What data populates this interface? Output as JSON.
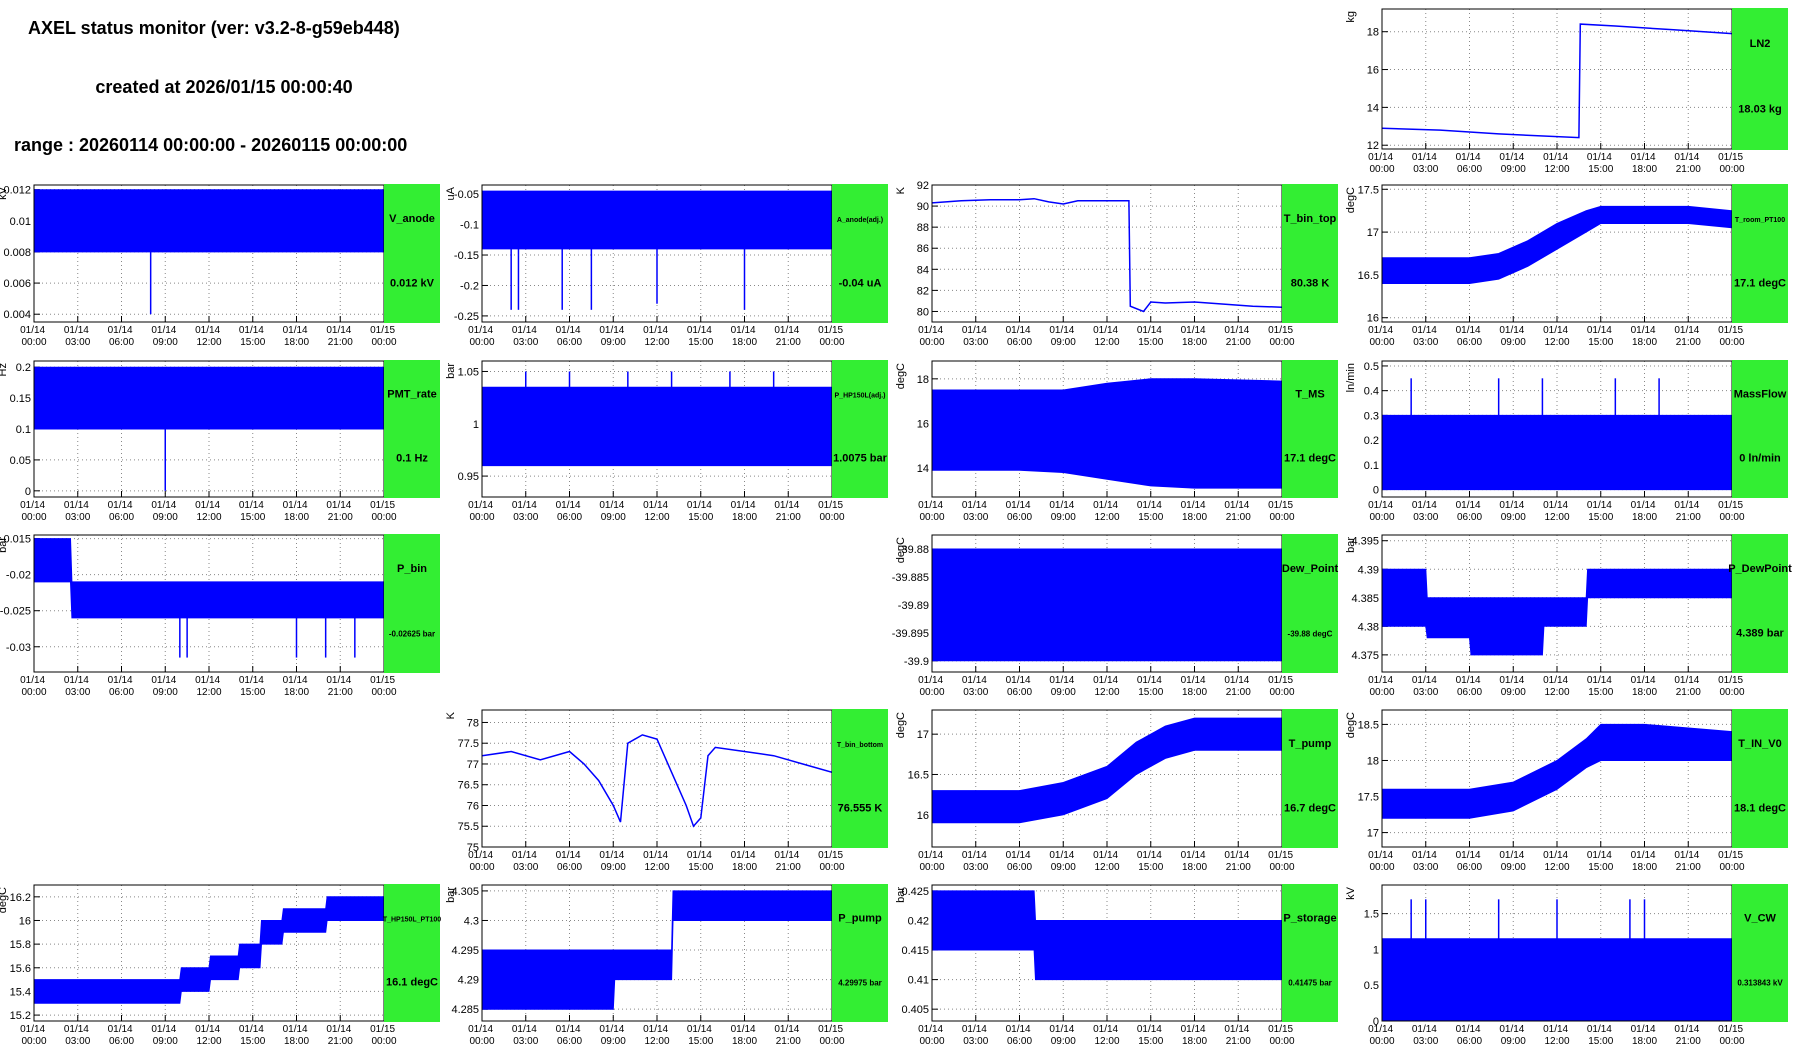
{
  "header": {
    "title": "AXEL status monitor (ver: v3.2-8-g59eb448)",
    "created": "created at 2026/01/15 00:00:40",
    "range": "range : 20260114 00:00:00 - 20260115 00:00:00"
  },
  "line_color": "#0000ff",
  "time_axis": {
    "xlim": [
      0,
      24
    ],
    "xticks": [
      {
        "value": 0,
        "label": "01/14 00:00"
      },
      {
        "value": 3,
        "label": "01/14 03:00"
      },
      {
        "value": 6,
        "label": "01/14 06:00"
      },
      {
        "value": 9,
        "label": "01/14 09:00"
      },
      {
        "value": 12,
        "label": "01/14 12:00"
      },
      {
        "value": 15,
        "label": "01/14 15:00"
      },
      {
        "value": 18,
        "label": "01/14 18:00"
      },
      {
        "value": 21,
        "label": "01/14 21:00"
      },
      {
        "value": 24,
        "label": "01/15 00:00"
      }
    ]
  },
  "chart_data": [
    {
      "type": "line",
      "name": "LN2",
      "ylabel": "kg",
      "value_label": "18.03 kg",
      "ylim": [
        11.8,
        19.2
      ],
      "yticks": [
        12,
        14,
        16,
        18
      ],
      "x": [
        0,
        4,
        8,
        13.5,
        13.6,
        16,
        20,
        24
      ],
      "values": [
        12.9,
        12.8,
        12.6,
        12.4,
        18.4,
        18.3,
        18.1,
        17.9
      ]
    },
    {
      "type": "band",
      "name": "V_anode",
      "ylabel": "kV",
      "value_label": "0.012 kV",
      "ylim": [
        0.0035,
        0.0123
      ],
      "yticks": [
        0.004,
        0.006,
        0.008,
        0.01,
        0.012
      ],
      "x": [
        0,
        24
      ],
      "low": [
        0.008,
        0.008
      ],
      "high": [
        0.012,
        0.012
      ],
      "spike_x": [
        8
      ],
      "spike_values": [
        0.004
      ]
    },
    {
      "type": "band",
      "name": "A_anode(adj.)",
      "ylabel": "uA",
      "value_label": "-0.04 uA",
      "ylim": [
        -0.26,
        -0.035
      ],
      "yticks": [
        -0.05,
        -0.1,
        -0.15,
        -0.2,
        -0.25
      ],
      "x": [
        0,
        24
      ],
      "low": [
        -0.14,
        -0.14
      ],
      "high": [
        -0.045,
        -0.045
      ],
      "spike_x": [
        2,
        2.5,
        5.5,
        7.5,
        12,
        18
      ],
      "spike_values": [
        -0.24,
        -0.24,
        -0.24,
        -0.24,
        -0.23,
        -0.24
      ]
    },
    {
      "type": "line",
      "name": "T_bin_top",
      "ylabel": "K",
      "value_label": "80.38 K",
      "ylim": [
        79,
        92
      ],
      "yticks": [
        80,
        82,
        84,
        86,
        88,
        90,
        92
      ],
      "x": [
        0,
        2,
        4,
        6,
        7,
        8,
        9,
        10,
        12,
        13.5,
        13.6,
        14.5,
        15,
        16,
        18,
        20,
        22,
        24
      ],
      "values": [
        90.3,
        90.5,
        90.6,
        90.6,
        90.7,
        90.4,
        90.2,
        90.5,
        90.5,
        90.5,
        80.5,
        80.0,
        80.9,
        80.8,
        80.9,
        80.7,
        80.5,
        80.4
      ]
    },
    {
      "type": "band",
      "name": "T_room_PT100",
      "ylabel": "degC",
      "value_label": "17.1 degC",
      "ylim": [
        15.95,
        17.55
      ],
      "yticks": [
        16,
        16.5,
        17,
        17.5
      ],
      "x": [
        0,
        6,
        8,
        10,
        12,
        14,
        15,
        18,
        21,
        24
      ],
      "low": [
        16.4,
        16.4,
        16.45,
        16.6,
        16.8,
        17.0,
        17.1,
        17.1,
        17.1,
        17.05
      ],
      "high": [
        16.7,
        16.7,
        16.75,
        16.9,
        17.1,
        17.25,
        17.3,
        17.3,
        17.3,
        17.25
      ]
    },
    {
      "type": "band",
      "name": "PMT_rate",
      "ylabel": "Hz",
      "value_label": "0.1 Hz",
      "ylim": [
        -0.01,
        0.21
      ],
      "yticks": [
        0,
        0.05,
        0.1,
        0.15,
        0.2
      ],
      "x": [
        0,
        24
      ],
      "low": [
        0.1,
        0.1
      ],
      "high": [
        0.2,
        0.2
      ],
      "spike_x": [
        9
      ],
      "spike_values": [
        0
      ]
    },
    {
      "type": "band",
      "name": "P_HP150L(adj.)",
      "ylabel": "bar",
      "value_label": "1.0075 bar",
      "ylim": [
        0.93,
        1.06
      ],
      "yticks": [
        0.95,
        1,
        1.05
      ],
      "x": [
        0,
        24
      ],
      "low": [
        0.96,
        0.96
      ],
      "high": [
        1.035,
        1.035
      ],
      "spike_x": [
        3,
        6,
        10,
        13,
        17,
        20
      ],
      "spike_values": [
        1.05,
        1.05,
        1.05,
        1.05,
        1.05,
        1.05
      ]
    },
    {
      "type": "band",
      "name": "T_MS",
      "ylabel": "degC",
      "value_label": "17.1 degC",
      "ylim": [
        12.7,
        18.8
      ],
      "yticks": [
        14,
        16,
        18
      ],
      "x": [
        0,
        6,
        9,
        12,
        15,
        18,
        24
      ],
      "low": [
        13.9,
        13.9,
        13.8,
        13.5,
        13.2,
        13.1,
        13.1
      ],
      "high": [
        17.5,
        17.5,
        17.5,
        17.8,
        18.0,
        18.0,
        17.9
      ]
    },
    {
      "type": "band",
      "name": "MassFlow",
      "ylabel": "ln/min",
      "value_label": "0 ln/min",
      "ylim": [
        -0.03,
        0.52
      ],
      "yticks": [
        0,
        0.1,
        0.2,
        0.3,
        0.4,
        0.5
      ],
      "x": [
        0,
        24
      ],
      "low": [
        0,
        0
      ],
      "high": [
        0.3,
        0.3
      ],
      "spike_x": [
        2,
        8,
        11,
        16,
        19
      ],
      "spike_values": [
        0.45,
        0.45,
        0.45,
        0.45,
        0.45
      ]
    },
    {
      "type": "band",
      "name": "P_bin",
      "ylabel": "bar",
      "value_label": "-0.02625 bar",
      "ylim": [
        -0.0335,
        -0.0145
      ],
      "yticks": [
        -0.015,
        -0.02,
        -0.025,
        -0.03
      ],
      "x": [
        0,
        2.5,
        2.6,
        24
      ],
      "low": [
        -0.021,
        -0.021,
        -0.026,
        -0.026
      ],
      "high": [
        -0.015,
        -0.015,
        -0.021,
        -0.021
      ],
      "spike_x": [
        10,
        10.5,
        18,
        20,
        22
      ],
      "spike_values": [
        -0.0315,
        -0.0315,
        -0.0315,
        -0.0315,
        -0.0315
      ]
    },
    {
      "type": "band",
      "name": "Dew_Point",
      "ylabel": "degC",
      "value_label": "-39.88 degC",
      "ylim": [
        -39.902,
        -39.8775
      ],
      "yticks": [
        -39.88,
        -39.885,
        -39.89,
        -39.895,
        -39.9
      ],
      "x": [
        0,
        24
      ],
      "low": [
        -39.9,
        -39.9
      ],
      "high": [
        -39.88,
        -39.88
      ]
    },
    {
      "type": "band",
      "name": "P_DewPoint",
      "ylabel": "bar",
      "value_label": "4.389 bar",
      "ylim": [
        4.372,
        4.396
      ],
      "yticks": [
        4.375,
        4.38,
        4.385,
        4.39,
        4.395
      ],
      "x": [
        0,
        3,
        3.1,
        6,
        6.1,
        11,
        11.1,
        14,
        14.1,
        24
      ],
      "low": [
        4.38,
        4.38,
        4.378,
        4.378,
        4.375,
        4.375,
        4.38,
        4.38,
        4.385,
        4.385
      ],
      "high": [
        4.39,
        4.39,
        4.385,
        4.385,
        4.385,
        4.385,
        4.385,
        4.385,
        4.39,
        4.39
      ]
    },
    {
      "type": "line",
      "name": "T_bin_bottom",
      "ylabel": "K",
      "value_label": "76.555 K",
      "ylim": [
        75,
        78.3
      ],
      "yticks": [
        75,
        75.5,
        76,
        76.5,
        77,
        77.5,
        78
      ],
      "x": [
        0,
        2,
        4,
        6,
        7,
        8,
        9,
        9.5,
        10,
        11,
        12,
        13,
        14,
        14.5,
        15,
        15.5,
        16,
        18,
        20,
        22,
        24
      ],
      "values": [
        77.2,
        77.3,
        77.1,
        77.3,
        77.0,
        76.6,
        76.0,
        75.6,
        77.5,
        77.7,
        77.6,
        76.8,
        76.0,
        75.5,
        75.7,
        77.2,
        77.4,
        77.3,
        77.2,
        77.0,
        76.8
      ]
    },
    {
      "type": "band",
      "name": "T_pump",
      "ylabel": "degC",
      "value_label": "16.7 degC",
      "ylim": [
        15.6,
        17.3
      ],
      "yticks": [
        16,
        16.5,
        17
      ],
      "x": [
        0,
        6,
        9,
        12,
        14,
        16,
        18,
        24
      ],
      "low": [
        15.9,
        15.9,
        16.0,
        16.2,
        16.5,
        16.7,
        16.8,
        16.8
      ],
      "high": [
        16.3,
        16.3,
        16.4,
        16.6,
        16.9,
        17.1,
        17.2,
        17.2
      ]
    },
    {
      "type": "band",
      "name": "T_IN_V0",
      "ylabel": "degC",
      "value_label": "18.1 degC",
      "ylim": [
        16.8,
        18.7
      ],
      "yticks": [
        17,
        17.5,
        18,
        18.5
      ],
      "x": [
        0,
        6,
        9,
        12,
        14,
        15,
        18,
        24
      ],
      "low": [
        17.2,
        17.2,
        17.3,
        17.6,
        17.9,
        18.0,
        18.0,
        18.0
      ],
      "high": [
        17.6,
        17.6,
        17.7,
        18.0,
        18.3,
        18.5,
        18.5,
        18.4
      ]
    },
    {
      "type": "band",
      "name": "T_HP150L_PT100",
      "ylabel": "degC",
      "value_label": "16.1 degC",
      "ylim": [
        15.15,
        16.3
      ],
      "yticks": [
        15.2,
        15.4,
        15.6,
        15.8,
        16,
        16.2
      ],
      "x": [
        0,
        10,
        10.1,
        12,
        12.1,
        14,
        14.1,
        15.5,
        15.6,
        17,
        17.1,
        20,
        20.1,
        24
      ],
      "low": [
        15.3,
        15.3,
        15.4,
        15.4,
        15.5,
        15.5,
        15.6,
        15.6,
        15.8,
        15.8,
        15.9,
        15.9,
        16.0,
        16.0
      ],
      "high": [
        15.5,
        15.5,
        15.6,
        15.6,
        15.7,
        15.7,
        15.8,
        15.8,
        16.0,
        16.0,
        16.1,
        16.1,
        16.2,
        16.2
      ]
    },
    {
      "type": "band",
      "name": "P_pump",
      "ylabel": "bar",
      "value_label": "4.29975 bar",
      "ylim": [
        4.283,
        4.306
      ],
      "yticks": [
        4.285,
        4.29,
        4.295,
        4.3,
        4.305
      ],
      "x": [
        0,
        9,
        9.1,
        13,
        13.1,
        24
      ],
      "low": [
        4.285,
        4.285,
        4.29,
        4.29,
        4.3,
        4.3
      ],
      "high": [
        4.295,
        4.295,
        4.295,
        4.295,
        4.305,
        4.305
      ]
    },
    {
      "type": "band",
      "name": "P_storage",
      "ylabel": "bar",
      "value_label": "0.41475 bar",
      "ylim": [
        0.403,
        0.426
      ],
      "yticks": [
        0.405,
        0.41,
        0.415,
        0.42,
        0.425
      ],
      "x": [
        0,
        7,
        7.1,
        24
      ],
      "low": [
        0.415,
        0.415,
        0.41,
        0.41
      ],
      "high": [
        0.425,
        0.425,
        0.42,
        0.42
      ]
    },
    {
      "type": "band",
      "name": "V_CW",
      "ylabel": "kV",
      "value_label": "0.313843 kV",
      "ylim": [
        0,
        1.9
      ],
      "yticks": [
        0,
        0.5,
        1,
        1.5
      ],
      "x": [
        0,
        24
      ],
      "low": [
        0,
        0
      ],
      "high": [
        1.15,
        1.15
      ],
      "spike_x": [
        2,
        3,
        8,
        12,
        17,
        18
      ],
      "spike_values": [
        1.7,
        1.7,
        1.7,
        1.7,
        1.7,
        1.7
      ]
    }
  ]
}
